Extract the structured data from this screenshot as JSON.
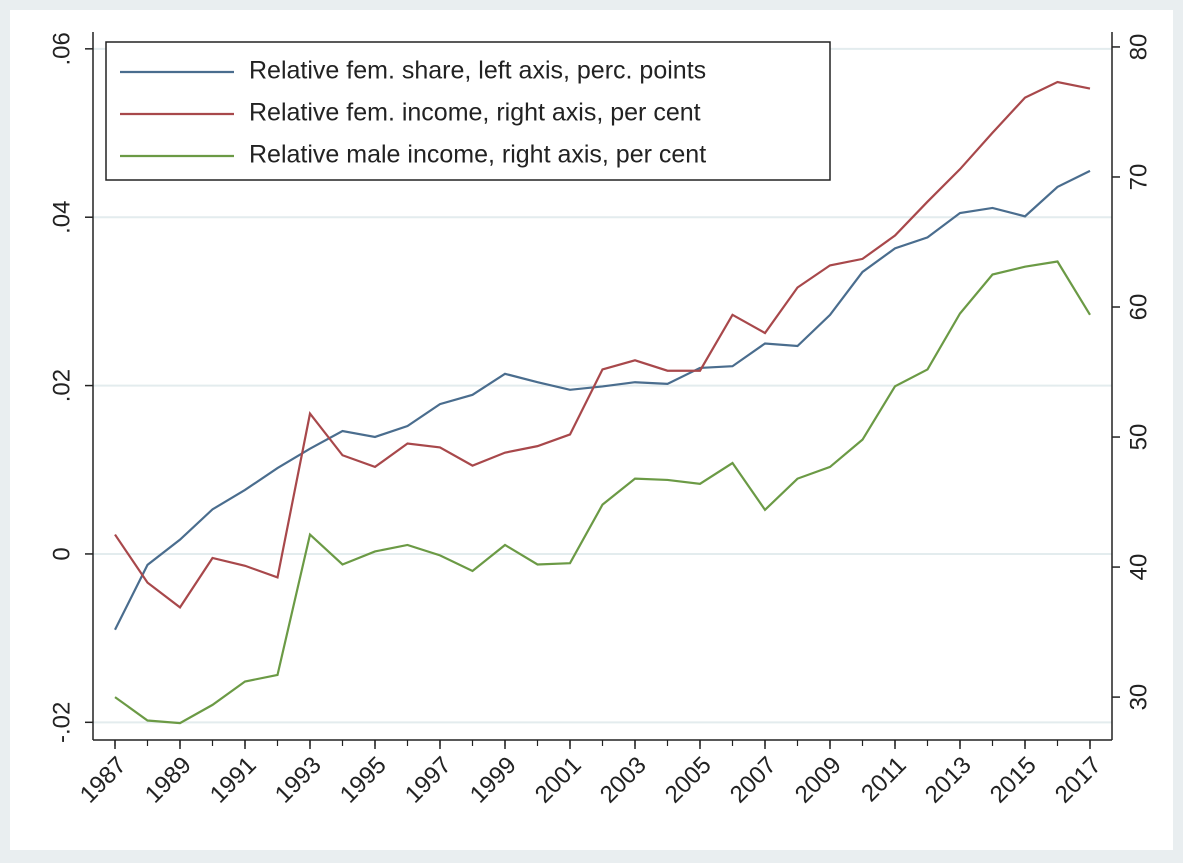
{
  "chart_data": {
    "type": "line",
    "x": [
      1987,
      1988,
      1989,
      1990,
      1991,
      1992,
      1993,
      1994,
      1995,
      1996,
      1997,
      1998,
      1999,
      2000,
      2001,
      2002,
      2003,
      2004,
      2005,
      2006,
      2007,
      2008,
      2009,
      2010,
      2011,
      2012,
      2013,
      2014,
      2015,
      2016,
      2017
    ],
    "xlim": [
      1987,
      2017
    ],
    "xticks": [
      1987,
      1989,
      1991,
      1993,
      1995,
      1997,
      1999,
      2001,
      2003,
      2005,
      2007,
      2009,
      2011,
      2013,
      2015,
      2017
    ],
    "ylim": [
      -0.0221,
      0.062
    ],
    "yticks": [
      {
        "value": -0.02,
        "label": "-.02"
      },
      0,
      {
        "value": 0.02,
        "label": ".02"
      },
      {
        "value": 0.04,
        "label": ".04"
      },
      {
        "value": 0.06,
        "label": ".06"
      }
    ],
    "y2lim": [
      26.7,
      81.15
    ],
    "y2ticks": [
      30,
      40,
      50,
      60,
      70,
      80
    ],
    "grid": true,
    "legend": "top-left",
    "series": [
      {
        "name": "Relative fem. share, left axis, perc. points",
        "color": "#4a6d8e",
        "axis": "y",
        "values": [
          -0.009,
          -0.0013,
          0.0017,
          0.0053,
          0.0076,
          0.0102,
          0.0125,
          0.0146,
          0.0139,
          0.0152,
          0.0178,
          0.0189,
          0.0214,
          0.0204,
          0.0195,
          0.0199,
          0.0204,
          0.0202,
          0.0221,
          0.0223,
          0.025,
          0.0247,
          0.0284,
          0.0335,
          0.0363,
          0.0376,
          0.0405,
          0.0411,
          0.0401,
          0.0436,
          0.0455
        ]
      },
      {
        "name": "Relative fem. income, right axis, per cent",
        "color": "#a8484b",
        "axis": "y2",
        "values": [
          42.5,
          38.8,
          36.9,
          40.7,
          40.1,
          39.2,
          51.8,
          48.6,
          47.7,
          49.5,
          49.2,
          47.8,
          48.8,
          49.3,
          50.2,
          55.2,
          55.9,
          55.1,
          55.1,
          59.4,
          58.0,
          61.5,
          63.2,
          63.7,
          65.5,
          68.1,
          70.6,
          73.4,
          76.1,
          77.3,
          76.8
        ]
      },
      {
        "name": "Relative male income, right axis, per cent",
        "color": "#6b9a45",
        "axis": "y2",
        "values": [
          30.0,
          28.2,
          28.0,
          29.4,
          31.2,
          31.7,
          42.5,
          40.2,
          41.2,
          41.7,
          40.9,
          39.7,
          41.7,
          40.2,
          40.3,
          44.8,
          46.8,
          46.7,
          46.4,
          48.0,
          44.4,
          46.8,
          47.7,
          49.8,
          53.9,
          55.2,
          59.5,
          62.5,
          63.1,
          63.5,
          59.4
        ]
      }
    ]
  }
}
